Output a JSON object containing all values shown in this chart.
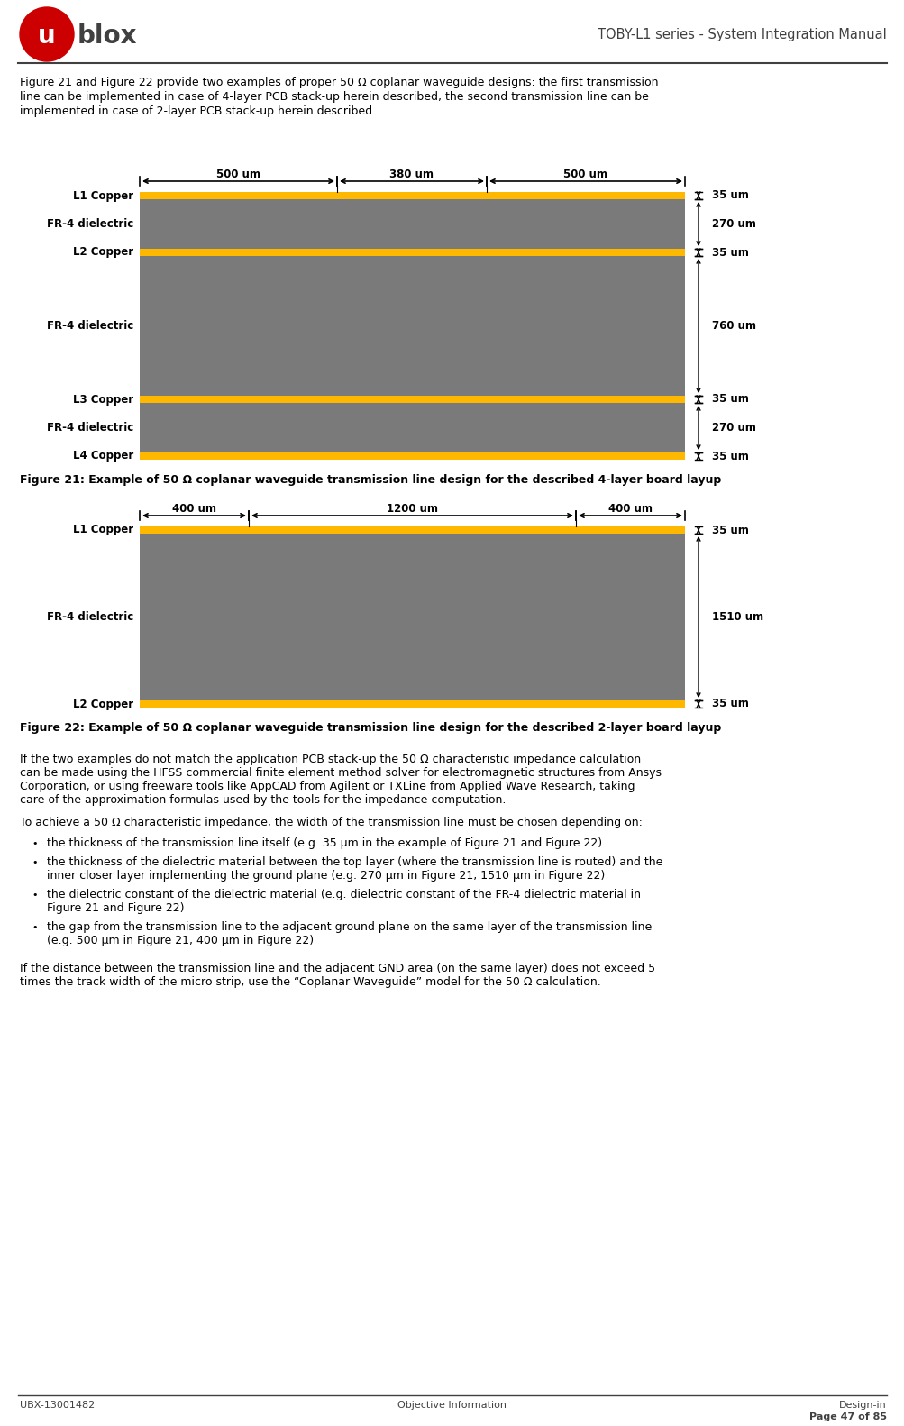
{
  "page_title": "TOBY-L1 series - System Integration Manual",
  "footer_left": "UBX-13001482",
  "footer_center": "Objective Information",
  "intro_lines": [
    "Figure 21 and Figure 22 provide two examples of proper 50 Ω coplanar waveguide designs: the first transmission",
    "line can be implemented in case of 4-layer PCB stack-up herein described, the second transmission line can be",
    "implemented in case of 2-layer PCB stack-up herein described."
  ],
  "fig21_caption": "Figure 21: Example of 50 Ω coplanar waveguide transmission line design for the described 4-layer board layup",
  "fig22_caption": "Figure 22: Example of 50 Ω coplanar waveguide transmission line design for the described 2-layer board layup",
  "body_text1_lines": [
    "If the two examples do not match the application PCB stack-up the 50 Ω characteristic impedance calculation",
    "can be made using the HFSS commercial finite element method solver for electromagnetic structures from Ansys",
    "Corporation, or using freeware tools like AppCAD from Agilent or TXLine from Applied Wave Research, taking",
    "care of the approximation formulas used by the tools for the impedance computation."
  ],
  "body_text2": "To achieve a 50 Ω characteristic impedance, the width of the transmission line must be chosen depending on:",
  "bullet1_lines": [
    "the thickness of the transmission line itself (e.g. 35 µm in the example of Figure 21 and Figure 22)"
  ],
  "bullet2_lines": [
    "the thickness of the dielectric material between the top layer (where the transmission line is routed) and the",
    "inner closer layer implementing the ground plane (e.g. 270 µm in Figure 21, 1510 µm in Figure 22)"
  ],
  "bullet3_lines": [
    "the dielectric constant of the dielectric material (e.g. dielectric constant of the FR-4 dielectric material in",
    "Figure 21 and Figure 22)"
  ],
  "bullet4_lines": [
    "the gap from the transmission line to the adjacent ground plane on the same layer of the transmission line",
    "(e.g. 500 µm in Figure 21, 400 µm in Figure 22)"
  ],
  "body_text3_lines": [
    "If the distance between the transmission line and the adjacent GND area (on the same layer) does not exceed 5",
    "times the track width of the micro strip, use the “Coplanar Waveguide” model for the 50 Ω calculation."
  ],
  "copper_color": "#FFB800",
  "dielectric_color": "#7A7A7A",
  "bg_color": "#FFFFFF",
  "text_color": "#000000",
  "dark_gray": "#404040"
}
